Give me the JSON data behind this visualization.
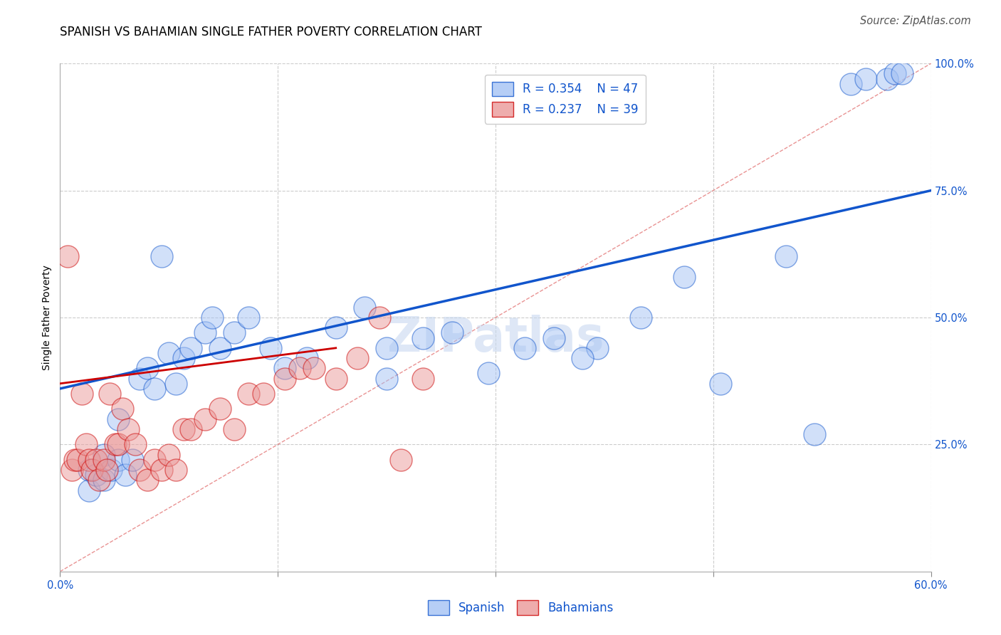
{
  "title": "SPANISH VS BAHAMIAN SINGLE FATHER POVERTY CORRELATION CHART",
  "source": "Source: ZipAtlas.com",
  "ylabel": "Single Father Poverty",
  "watermark": "ZIPatlas",
  "legend_blue": {
    "R": "0.354",
    "N": "47",
    "label": "Spanish"
  },
  "legend_pink": {
    "R": "0.237",
    "N": "39",
    "label": "Bahamians"
  },
  "xlim": [
    0.0,
    0.6
  ],
  "ylim": [
    0.0,
    1.0
  ],
  "blue_color": "#a4c2f4",
  "pink_color": "#ea9999",
  "blue_line_color": "#1155cc",
  "pink_line_color": "#cc0000",
  "diag_line_color": "#e06666",
  "spanish_x": [
    0.02,
    0.02,
    0.025,
    0.03,
    0.03,
    0.035,
    0.04,
    0.04,
    0.045,
    0.05,
    0.055,
    0.06,
    0.065,
    0.07,
    0.075,
    0.08,
    0.085,
    0.09,
    0.1,
    0.105,
    0.11,
    0.12,
    0.13,
    0.145,
    0.155,
    0.17,
    0.19,
    0.21,
    0.225,
    0.25,
    0.27,
    0.295,
    0.32,
    0.34,
    0.37,
    0.4,
    0.43,
    0.455,
    0.5,
    0.52,
    0.545,
    0.555,
    0.57,
    0.575,
    0.58,
    0.225,
    0.36
  ],
  "spanish_y": [
    0.2,
    0.16,
    0.19,
    0.18,
    0.23,
    0.2,
    0.3,
    0.22,
    0.19,
    0.22,
    0.38,
    0.4,
    0.36,
    0.62,
    0.43,
    0.37,
    0.42,
    0.44,
    0.47,
    0.5,
    0.44,
    0.47,
    0.5,
    0.44,
    0.4,
    0.42,
    0.48,
    0.52,
    0.44,
    0.46,
    0.47,
    0.39,
    0.44,
    0.46,
    0.44,
    0.5,
    0.58,
    0.37,
    0.62,
    0.27,
    0.96,
    0.97,
    0.97,
    0.98,
    0.98,
    0.38,
    0.42
  ],
  "bahamian_x": [
    0.005,
    0.008,
    0.01,
    0.012,
    0.015,
    0.018,
    0.02,
    0.022,
    0.025,
    0.027,
    0.03,
    0.032,
    0.034,
    0.038,
    0.04,
    0.043,
    0.047,
    0.052,
    0.055,
    0.06,
    0.065,
    0.07,
    0.075,
    0.08,
    0.085,
    0.09,
    0.1,
    0.11,
    0.12,
    0.13,
    0.14,
    0.155,
    0.165,
    0.175,
    0.19,
    0.205,
    0.22,
    0.235,
    0.25
  ],
  "bahamian_y": [
    0.62,
    0.2,
    0.22,
    0.22,
    0.35,
    0.25,
    0.22,
    0.2,
    0.22,
    0.18,
    0.22,
    0.2,
    0.35,
    0.25,
    0.25,
    0.32,
    0.28,
    0.25,
    0.2,
    0.18,
    0.22,
    0.2,
    0.23,
    0.2,
    0.28,
    0.28,
    0.3,
    0.32,
    0.28,
    0.35,
    0.35,
    0.38,
    0.4,
    0.4,
    0.38,
    0.42,
    0.5,
    0.22,
    0.38
  ],
  "blue_trend": [
    0.0,
    0.6,
    0.36,
    0.75
  ],
  "pink_trend": [
    0.0,
    0.19,
    0.37,
    0.44
  ],
  "diag_line": [
    0.0,
    0.6,
    0.0,
    1.0
  ],
  "title_fontsize": 12,
  "axis_label_fontsize": 10,
  "tick_fontsize": 10.5,
  "legend_fontsize": 12,
  "source_fontsize": 10.5
}
